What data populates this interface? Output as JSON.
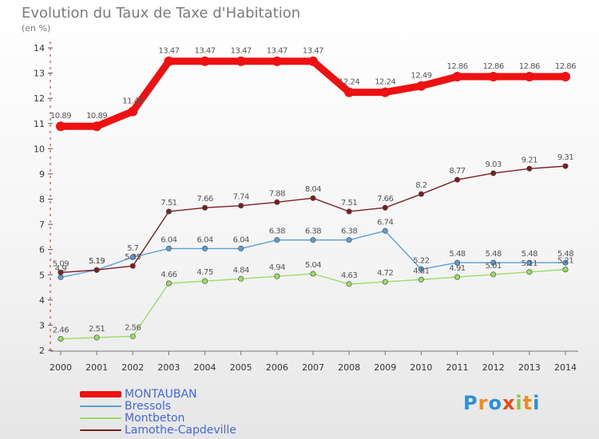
{
  "header": {
    "title": "Evolution du Taux de Taxe d'Habitation",
    "subtitle": "(en %)"
  },
  "logo": {
    "letters": [
      "P",
      "r",
      "o",
      "x",
      "i",
      "t",
      "i"
    ],
    "colors": [
      "#2c8fd8",
      "#f28a1d",
      "#2c8fd8",
      "#e84a1c",
      "#8cc63f",
      "#f28a1d",
      "#2c8fd8"
    ]
  },
  "chart_data": {
    "type": "line",
    "title": "Evolution du Taux de Taxe d'Habitation",
    "subtitle": "(en %)",
    "xlabel": "",
    "ylabel": "",
    "x": [
      "2000",
      "2001",
      "2002",
      "2003",
      "2004",
      "2005",
      "2006",
      "2007",
      "2008",
      "2009",
      "2010",
      "2011",
      "2012",
      "2013",
      "2014"
    ],
    "ylim": [
      2,
      14
    ],
    "yticks": [
      2,
      3,
      4,
      5,
      6,
      7,
      8,
      9,
      10,
      11,
      12,
      13,
      14
    ],
    "grid": false,
    "legend_position": "bottom-left",
    "series": [
      {
        "name": "MONTAUBAN",
        "color": "#ee1111",
        "values": [
          10.89,
          10.89,
          11.48,
          13.47,
          13.47,
          13.47,
          13.47,
          13.47,
          12.24,
          12.24,
          12.49,
          12.86,
          12.86,
          12.86,
          12.86
        ],
        "labels": [
          "10.89",
          "10.89",
          "11.48",
          "13.47",
          "13.47",
          "13.47",
          "13.47",
          "13.47",
          "12.24",
          "12.24",
          "12.49",
          "12.86",
          "12.86",
          "12.86",
          "12.86"
        ]
      },
      {
        "name": "Bressols",
        "color": "#5a9fd4",
        "values": [
          4.9,
          5.19,
          5.7,
          6.04,
          6.04,
          6.04,
          6.38,
          6.38,
          6.38,
          6.74,
          5.22,
          5.48,
          5.48,
          5.48,
          5.48
        ],
        "labels": [
          "4.9",
          "5.19",
          "5.7",
          "6.04",
          "6.04",
          "6.04",
          "6.38",
          "6.38",
          "6.38",
          "6.74",
          "5.22",
          "5.48",
          "5.48",
          "5.48",
          "5.48"
        ]
      },
      {
        "name": "Montbeton",
        "color": "#99dd66",
        "values": [
          2.46,
          2.51,
          2.56,
          4.66,
          4.75,
          4.84,
          4.94,
          5.04,
          4.63,
          4.72,
          4.81,
          4.91,
          5.01,
          5.11,
          5.21
        ],
        "labels": [
          "2.46",
          "2.51",
          "2.56",
          "4.66",
          "4.75",
          "4.84",
          "4.94",
          "5.04",
          "4.63",
          "4.72",
          "4.81",
          "4.91",
          "5.01",
          "5.11",
          "5.21"
        ]
      },
      {
        "name": "Lamothe-Capdeville",
        "color": "#7a1f22",
        "values": [
          5.09,
          5.19,
          5.35,
          7.51,
          7.66,
          7.74,
          7.88,
          8.04,
          7.51,
          7.66,
          8.2,
          8.77,
          9.03,
          9.21,
          9.31
        ],
        "labels": [
          "5.09",
          "5.19",
          "5.35",
          "7.51",
          "7.66",
          "7.74",
          "7.88",
          "8.04",
          "7.51",
          "7.66",
          "8.2",
          "8.77",
          "9.03",
          "9.21",
          "9.31"
        ]
      }
    ]
  }
}
